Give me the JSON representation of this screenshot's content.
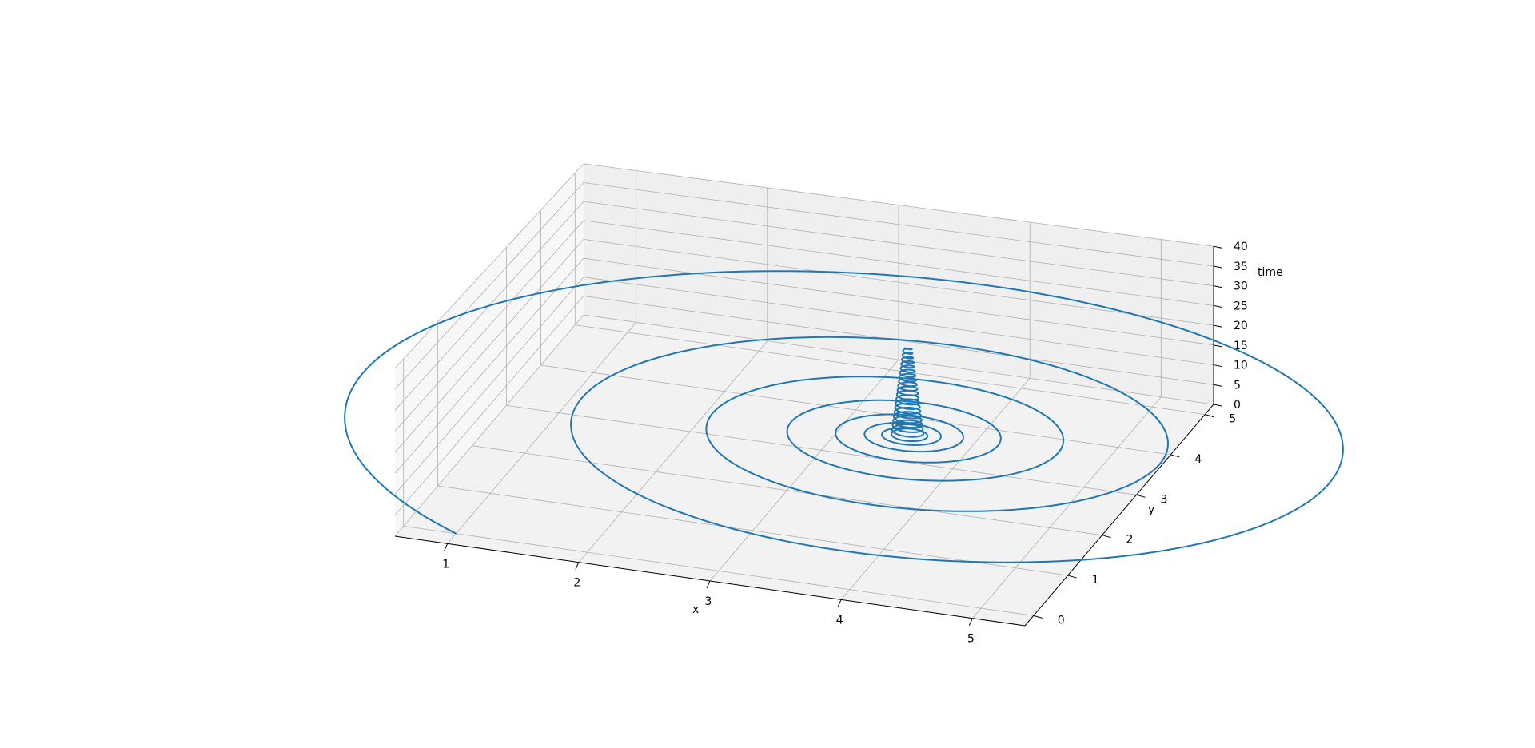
{
  "chart_data": {
    "type": "line",
    "projection": "3d",
    "title": "",
    "xlabel": "x",
    "ylabel": "y",
    "zlabel": "time",
    "xlim": [
      0.6,
      5.4
    ],
    "ylim": [
      -0.25,
      5.25
    ],
    "zlim": [
      0,
      40
    ],
    "xticks": [
      "1",
      "2",
      "3",
      "4",
      "5"
    ],
    "yticks": [
      "0",
      "1",
      "2",
      "3",
      "4",
      "5"
    ],
    "zticks": [
      "0",
      "5",
      "10",
      "15",
      "20",
      "25",
      "30",
      "35",
      "40"
    ],
    "grid": true,
    "series": [
      {
        "color": "#1f77b4",
        "description": "inward spiral on the time=0 plane converging to (x≈3.5, y≈3.6), then a tight helix rising in time",
        "spiral_start": {
          "x": 1.0,
          "y": 0.0
        },
        "spiral_center": {
          "x": 3.5,
          "y": 3.6
        },
        "spiral_turns": 7,
        "helix_time_range": [
          0,
          22
        ],
        "helix_turns": 20
      }
    ]
  }
}
